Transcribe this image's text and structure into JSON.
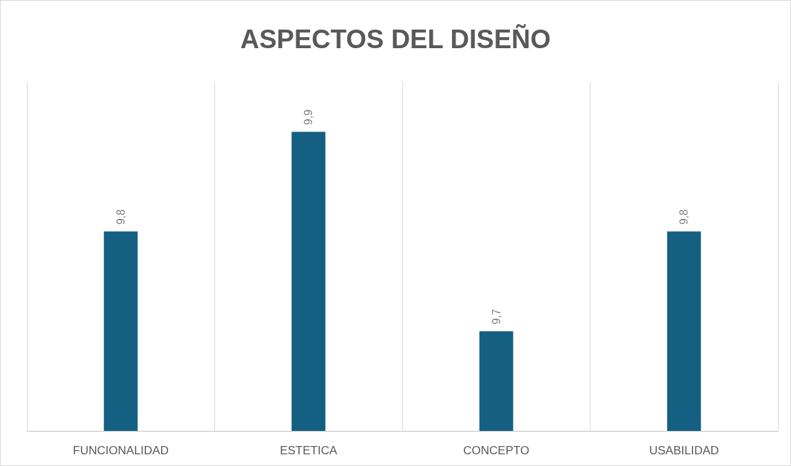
{
  "chart_data": {
    "type": "bar",
    "title": "ASPECTOS DEL DISEÑO",
    "categories": [
      "FUNCIONALIDAD",
      "ESTETICA",
      "CONCEPTO",
      "USABILIDAD"
    ],
    "values": [
      9.8,
      9.9,
      9.7,
      9.8
    ],
    "value_labels": [
      "9,8",
      "9,9",
      "9,7",
      "9,8"
    ],
    "color": "#156082",
    "ylim": [
      9.6,
      9.95
    ],
    "tick_labels": "x",
    "grid": "x"
  }
}
